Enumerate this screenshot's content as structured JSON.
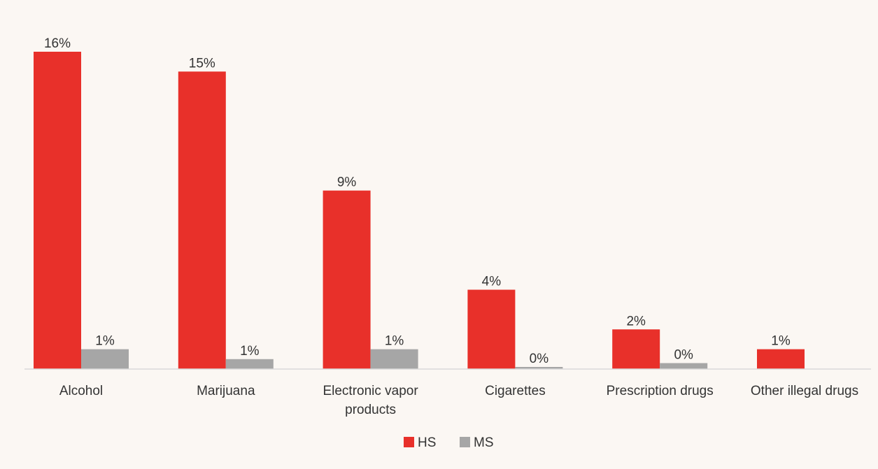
{
  "chart_data": {
    "type": "bar",
    "title": "",
    "xlabel": "",
    "ylabel": "",
    "categories": [
      "Alcohol",
      "Marijuana",
      "Electronic vapor products",
      "Cigarettes",
      "Prescription drugs",
      "Other illegal drugs"
    ],
    "category_lines": [
      [
        "Alcohol"
      ],
      [
        "Marijuana"
      ],
      [
        "Electronic vapor",
        "products"
      ],
      [
        "Cigarettes"
      ],
      [
        "Prescription drugs"
      ],
      [
        "Other illegal drugs"
      ]
    ],
    "series": [
      {
        "name": "HS",
        "color": "#e8302a",
        "values": [
          16,
          15,
          9,
          4,
          2,
          1
        ],
        "labels": [
          "16%",
          "15%",
          "9%",
          "4%",
          "2%",
          "1%"
        ]
      },
      {
        "name": "MS",
        "color": "#a6a6a6",
        "values": [
          1,
          0.5,
          1,
          0.1,
          0.3,
          null
        ],
        "labels": [
          "1%",
          "1%",
          "1%",
          "0%",
          "0%",
          null
        ]
      }
    ],
    "ylim": [
      0,
      16
    ],
    "grid": false,
    "legend": "bottom-center"
  }
}
